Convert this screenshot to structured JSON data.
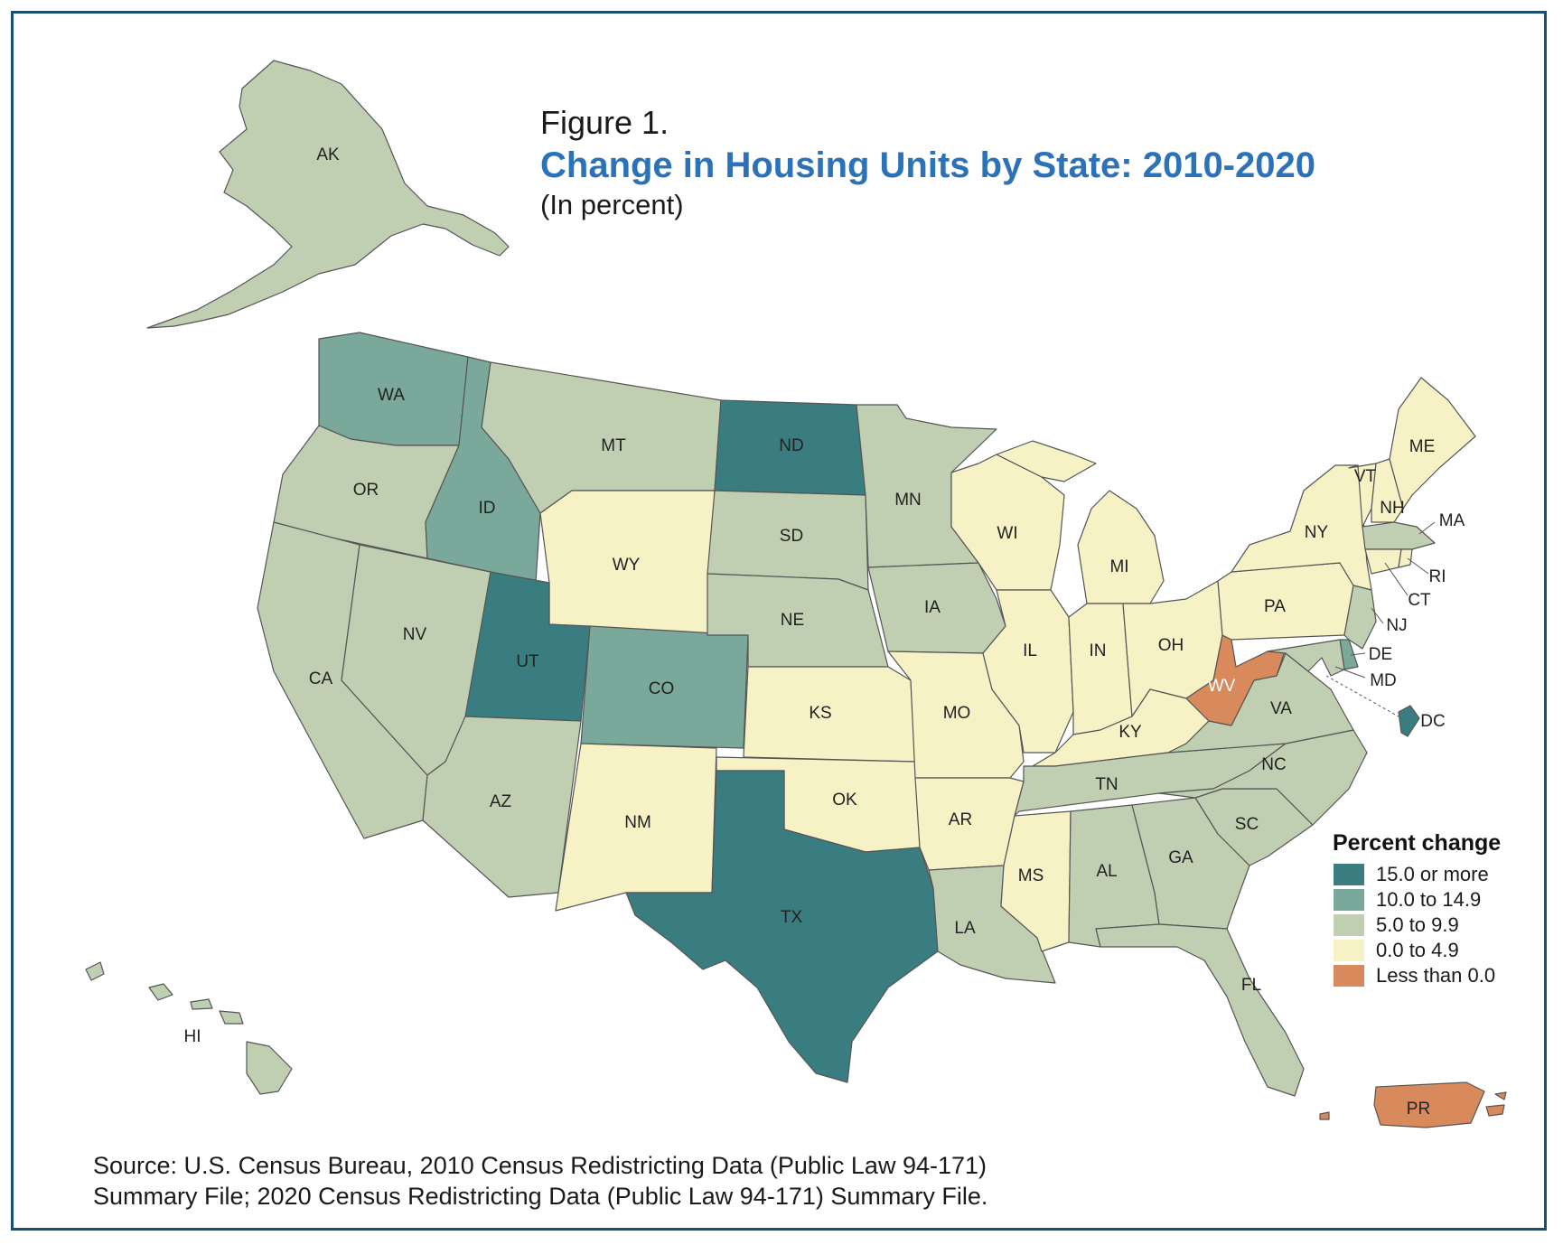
{
  "figure": {
    "label": "Figure 1.",
    "title": "Change in Housing Units by State: 2010-2020",
    "subtitle": "(In percent)"
  },
  "source": {
    "line1": "Source: U.S. Census Bureau, 2010 Census Redistricting Data (Public Law 94-171)",
    "line2": "Summary File; 2020 Census Redistricting Data (Public Law 94-171) Summary File."
  },
  "legend": {
    "title": "Percent change",
    "classes": [
      {
        "label": "15.0 or more",
        "color": "#3a7d80"
      },
      {
        "label": "10.0 to 14.9",
        "color": "#7aa89a"
      },
      {
        "label": "5.0 to 9.9",
        "color": "#c0cfb2"
      },
      {
        "label": "0.0 to 4.9",
        "color": "#f7f1c6"
      },
      {
        "label": "Less than 0.0",
        "color": "#d88a5c"
      }
    ]
  },
  "states": {
    "AK": 2,
    "HI": 2,
    "WA": 1,
    "OR": 2,
    "CA": 2,
    "NV": 2,
    "ID": 1,
    "MT": 2,
    "WY": 3,
    "UT": 0,
    "AZ": 2,
    "CO": 1,
    "NM": 3,
    "ND": 0,
    "SD": 2,
    "NE": 2,
    "KS": 3,
    "OK": 3,
    "TX": 0,
    "MN": 2,
    "IA": 2,
    "MO": 3,
    "AR": 3,
    "LA": 2,
    "WI": 3,
    "IL": 3,
    "MI": 3,
    "IN": 3,
    "OH": 3,
    "KY": 3,
    "TN": 2,
    "MS": 3,
    "AL": 2,
    "GA": 2,
    "FL": 2,
    "SC": 2,
    "NC": 2,
    "VA": 2,
    "WV": 4,
    "PA": 3,
    "NY": 3,
    "VT": 3,
    "NH": 3,
    "ME": 3,
    "MA": 2,
    "RI": 3,
    "CT": 3,
    "NJ": 2,
    "DE": 1,
    "MD": 2,
    "DC": 0,
    "PR": 4
  }
}
